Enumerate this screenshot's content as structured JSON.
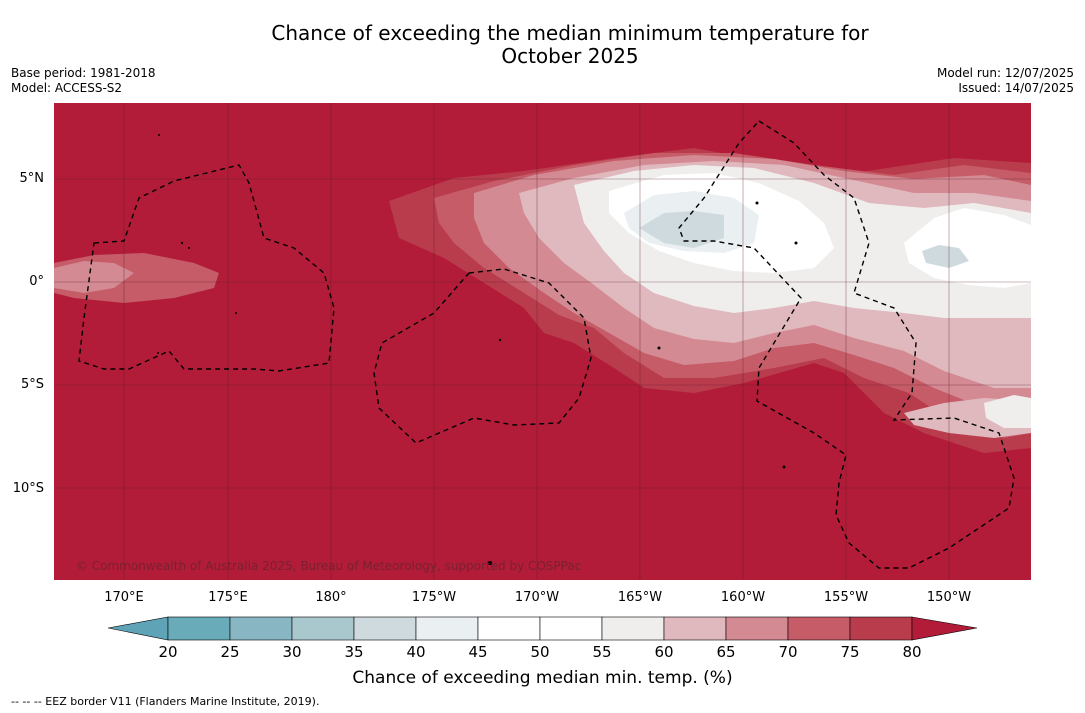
{
  "header": {
    "title_line1": "Chance of exceeding the median minimum temperature for",
    "title_line2": "October 2025",
    "base_period": "Base period: 1981-2018",
    "model": "Model: ACCESS-S2",
    "model_run": "Model run: 12/07/2025",
    "issued": "Issued: 14/07/2025"
  },
  "map": {
    "lat_labels": [
      "5°N",
      "0°",
      "5°S",
      "10°S"
    ],
    "lon_labels": [
      "170°E",
      "175°E",
      "180°",
      "175°W",
      "170°W",
      "165°W",
      "160°W",
      "155°W",
      "150°W"
    ],
    "copyright": "© Commonwealth of Australia 2025, Bureau of Meteorology, supported by COSPPac",
    "background_color": "#b21c38"
  },
  "legend": {
    "ticks": [
      "20",
      "25",
      "30",
      "35",
      "40",
      "45",
      "50",
      "55",
      "60",
      "65",
      "70",
      "75",
      "80"
    ],
    "colors": [
      "#5fa4b6",
      "#6aabba",
      "#88b7c3",
      "#a9c8cd",
      "#cfdadf",
      "#eaeff2",
      "#ffffff",
      "#ffffff",
      "#efeeed",
      "#e0b9be",
      "#d38a93",
      "#c55c68",
      "#b93c4d",
      "#b21c38"
    ],
    "title": "Chance of exceeding median min. temp. (%)",
    "footnote": "-- -- -- EEZ border V11 (Flanders Marine Institute, 2019)."
  }
}
